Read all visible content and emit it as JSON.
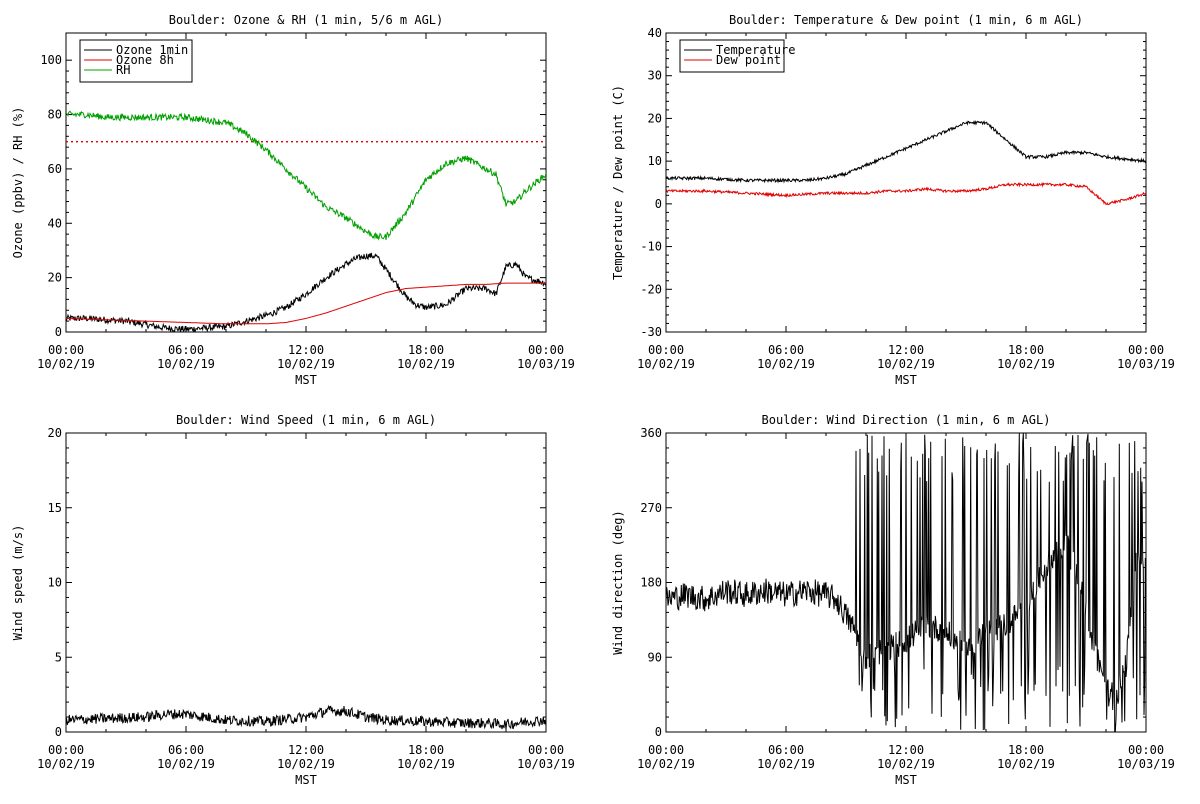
{
  "chart_data": [
    {
      "type": "line",
      "title": "Boulder: Ozone & RH (1 min, 5/6 m AGL)",
      "xlabel": "MST",
      "ylabel": "Ozone (ppbv) / RH (%)",
      "ylim": [
        0,
        110
      ],
      "yticks": [
        0,
        20,
        40,
        60,
        80,
        100
      ],
      "x_tick_labels": [
        [
          "00:00",
          "10/02/19"
        ],
        [
          "06:00",
          "10/02/19"
        ],
        [
          "12:00",
          "10/02/19"
        ],
        [
          "18:00",
          "10/02/19"
        ],
        [
          "00:00",
          "10/03/19"
        ]
      ],
      "xlim_hours": [
        0,
        24
      ],
      "reference_line": {
        "y": 70,
        "style": "dotted",
        "color": "#e00000"
      },
      "legend": {
        "position": "top-left",
        "entries": [
          "Ozone 1min",
          "Ozone 8h",
          "RH"
        ]
      },
      "series": [
        {
          "name": "Ozone 1min",
          "color": "#000000",
          "noise": 1.2,
          "x": [
            0,
            1,
            2,
            3,
            3.8,
            4.5,
            5,
            6,
            7,
            8,
            9,
            10,
            11,
            12,
            13,
            14,
            14.5,
            15,
            15.5,
            16,
            16.5,
            17,
            17.5,
            18,
            19,
            20,
            21,
            21.5,
            22,
            22.5,
            23,
            24
          ],
          "y": [
            5,
            5,
            4.5,
            4,
            3,
            2,
            1.5,
            1,
            1.5,
            2,
            4,
            6,
            9,
            14,
            20,
            25,
            27,
            28,
            28,
            23,
            18,
            13,
            10,
            9,
            10,
            16,
            16,
            14,
            24,
            25,
            20,
            18
          ]
        },
        {
          "name": "Ozone 8h",
          "color": "#e00000",
          "noise": 0,
          "x": [
            0,
            2,
            4,
            6,
            8,
            10,
            11,
            12,
            13,
            14,
            15,
            16,
            17,
            18,
            19,
            20,
            21,
            22,
            23,
            24
          ],
          "y": [
            5,
            4.5,
            4,
            3.5,
            3,
            3,
            3.5,
            5,
            7,
            9.5,
            12,
            14.5,
            16,
            16.5,
            17,
            17.5,
            17.5,
            18,
            18,
            18
          ]
        },
        {
          "name": "RH",
          "color": "#00a000",
          "noise": 1.2,
          "x": [
            0,
            1,
            2,
            3,
            4,
            5,
            6,
            7,
            8,
            9,
            10,
            11,
            12,
            13,
            14,
            15,
            15.5,
            16,
            17,
            18,
            19,
            20,
            21,
            21.5,
            22,
            22.5,
            23,
            24
          ],
          "y": [
            80,
            80,
            79,
            79,
            79,
            79,
            79,
            78,
            77,
            73,
            67,
            60,
            53,
            46,
            42,
            37,
            35,
            35,
            44,
            56,
            62,
            64,
            60,
            58,
            47,
            48,
            52,
            58
          ]
        }
      ]
    },
    {
      "type": "line",
      "title": "Boulder: Temperature & Dew point (1 min, 6 m AGL)",
      "xlabel": "MST",
      "ylabel": "Temperature / Dew point (C)",
      "ylim": [
        -30,
        40
      ],
      "yticks": [
        -30,
        -20,
        -10,
        0,
        10,
        20,
        30,
        40
      ],
      "x_tick_labels": [
        [
          "00:00",
          "10/02/19"
        ],
        [
          "06:00",
          "10/02/19"
        ],
        [
          "12:00",
          "10/02/19"
        ],
        [
          "18:00",
          "10/02/19"
        ],
        [
          "00:00",
          "10/03/19"
        ]
      ],
      "xlim_hours": [
        0,
        24
      ],
      "legend": {
        "position": "top-left",
        "entries": [
          "Temperature",
          "Dew point"
        ]
      },
      "series": [
        {
          "name": "Temperature",
          "color": "#000000",
          "noise": 0.35,
          "x": [
            0,
            2,
            4,
            6,
            7,
            8,
            9,
            10,
            11,
            12,
            13,
            14,
            15,
            16,
            17,
            18,
            19,
            20,
            21,
            22,
            23,
            24
          ],
          "y": [
            6,
            6,
            5.5,
            5.5,
            5.5,
            6,
            7,
            9,
            11,
            13,
            15,
            17,
            19,
            19,
            15,
            11,
            11,
            12,
            12,
            11,
            10.5,
            10
          ]
        },
        {
          "name": "Dew point",
          "color": "#e00000",
          "noise": 0.3,
          "x": [
            0,
            2,
            4,
            6,
            8,
            10,
            11,
            12,
            13,
            14,
            15,
            16,
            17,
            18,
            19,
            20,
            21,
            21.5,
            22,
            22.5,
            23,
            24
          ],
          "y": [
            3,
            3,
            2.5,
            2,
            2.5,
            2.5,
            3,
            3,
            3.5,
            3,
            3,
            3.5,
            4.5,
            4.5,
            4.5,
            4.5,
            4,
            2,
            0,
            0.5,
            1,
            2.5
          ]
        }
      ]
    },
    {
      "type": "line",
      "title": "Boulder: Wind Speed (1 min, 6 m AGL)",
      "xlabel": "MST",
      "ylabel": "Wind speed (m/s)",
      "ylim": [
        0,
        20
      ],
      "yticks": [
        0,
        5,
        10,
        15,
        20
      ],
      "x_tick_labels": [
        [
          "00:00",
          "10/02/19"
        ],
        [
          "06:00",
          "10/02/19"
        ],
        [
          "12:00",
          "10/02/19"
        ],
        [
          "18:00",
          "10/02/19"
        ],
        [
          "00:00",
          "10/03/19"
        ]
      ],
      "xlim_hours": [
        0,
        24
      ],
      "series": [
        {
          "name": "",
          "color": "#000000",
          "noise": 0.35,
          "x": [
            0,
            2,
            4,
            5,
            6,
            7,
            8,
            10,
            12,
            13,
            14,
            15,
            16,
            18,
            20,
            21,
            22,
            23,
            24
          ],
          "y": [
            0.8,
            0.9,
            1.0,
            1.2,
            1.2,
            1.0,
            0.8,
            0.7,
            1.0,
            1.4,
            1.4,
            1.0,
            0.8,
            0.7,
            0.6,
            0.6,
            0.5,
            0.7,
            0.8
          ]
        }
      ]
    },
    {
      "type": "line",
      "title": "Boulder: Wind Direction (1 min, 6 m AGL)",
      "xlabel": "MST",
      "ylabel": "Wind direction (deg)",
      "ylim": [
        0,
        360
      ],
      "yticks": [
        0,
        90,
        180,
        270,
        360
      ],
      "x_tick_labels": [
        [
          "00:00",
          "10/02/19"
        ],
        [
          "06:00",
          "10/02/19"
        ],
        [
          "12:00",
          "10/02/19"
        ],
        [
          "18:00",
          "10/02/19"
        ],
        [
          "00:00",
          "10/03/19"
        ]
      ],
      "xlim_hours": [
        0,
        24
      ],
      "series": [
        {
          "name": "",
          "color": "#000000",
          "noise": 16,
          "x": [
            0,
            1,
            2,
            3,
            4,
            5,
            6,
            7,
            8,
            8.5,
            9,
            9.5,
            10,
            11,
            12,
            13,
            14,
            15,
            16,
            17,
            18,
            19,
            20,
            21,
            21.5,
            22,
            22.5,
            23,
            23.5,
            24
          ],
          "y": [
            160,
            165,
            160,
            170,
            165,
            170,
            165,
            170,
            165,
            160,
            140,
            120,
            90,
            100,
            110,
            130,
            120,
            100,
            120,
            130,
            150,
            200,
            230,
            150,
            90,
            60,
            40,
            80,
            200,
            200
          ],
          "volatile_from_hour": 9.5
        }
      ]
    }
  ]
}
